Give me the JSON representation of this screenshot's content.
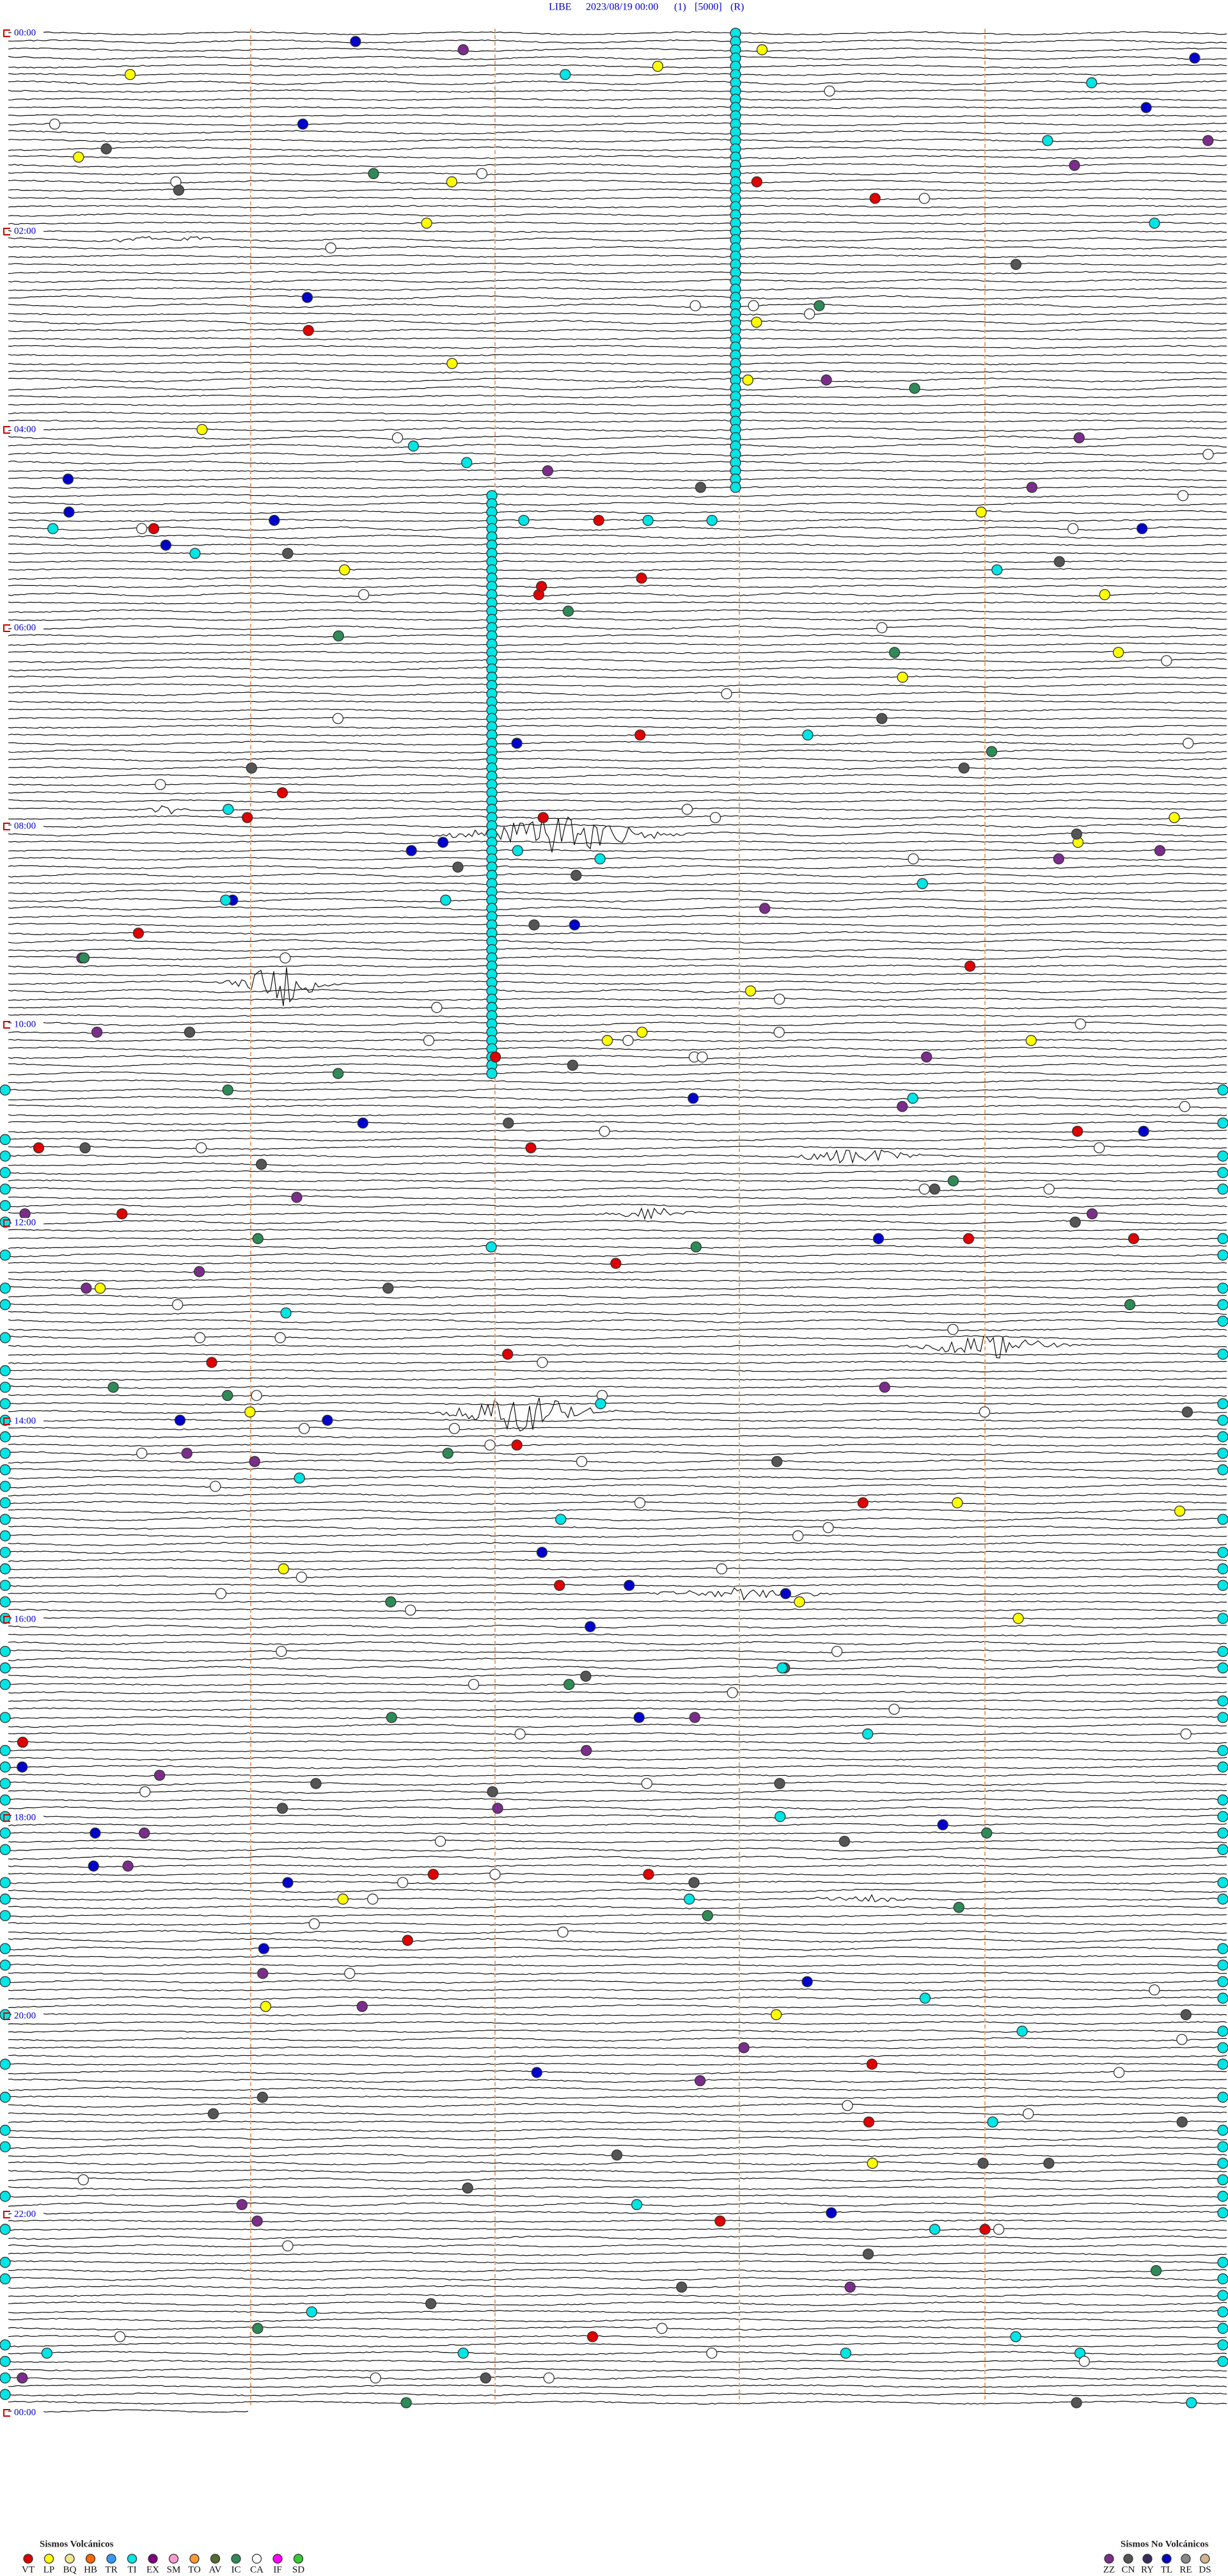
{
  "header": {
    "station": "LIBE",
    "datetime": "2023/08/19 00:00",
    "channel": "(1)",
    "scale": "[5000]",
    "mode": "(R)"
  },
  "hour_labels": [
    "00:00",
    "02:00",
    "04:00",
    "06:00",
    "08:00",
    "10:00",
    "12:00",
    "14:00",
    "16:00",
    "18:00",
    "20:00",
    "22:00",
    "00:00"
  ],
  "legend": {
    "volcanic": {
      "title": "Sismos Volcánicos",
      "items": [
        {
          "code": "VT",
          "color": "#e00000"
        },
        {
          "code": "LP",
          "color": "#ffff00"
        },
        {
          "code": "BQ",
          "color": "#f0e68c"
        },
        {
          "code": "HB",
          "color": "#ff6600"
        },
        {
          "code": "TR",
          "color": "#3399ff"
        },
        {
          "code": "TI",
          "color": "#00e5e5"
        },
        {
          "code": "EX",
          "color": "#800080"
        },
        {
          "code": "SM",
          "color": "#ff99cc"
        },
        {
          "code": "TO",
          "color": "#ff9933"
        },
        {
          "code": "AV",
          "color": "#556b2f"
        },
        {
          "code": "IC",
          "color": "#2e8b57"
        },
        {
          "code": "CA",
          "color": "#ffffff"
        },
        {
          "code": "IF",
          "color": "#ff00ff"
        },
        {
          "code": "SD",
          "color": "#33cc33"
        }
      ]
    },
    "non_volcanic": {
      "title": "Sismos No Volcánicos",
      "items": [
        {
          "code": "ZZ",
          "color": "#7b2d8b"
        },
        {
          "code": "CN",
          "color": "#555555"
        },
        {
          "code": "RY",
          "color": "#3a2d5c"
        },
        {
          "code": "TL",
          "color": "#0000cc"
        },
        {
          "code": "RE",
          "color": "#888888"
        },
        {
          "code": "DS",
          "color": "#d2b48c"
        }
      ]
    }
  }
}
